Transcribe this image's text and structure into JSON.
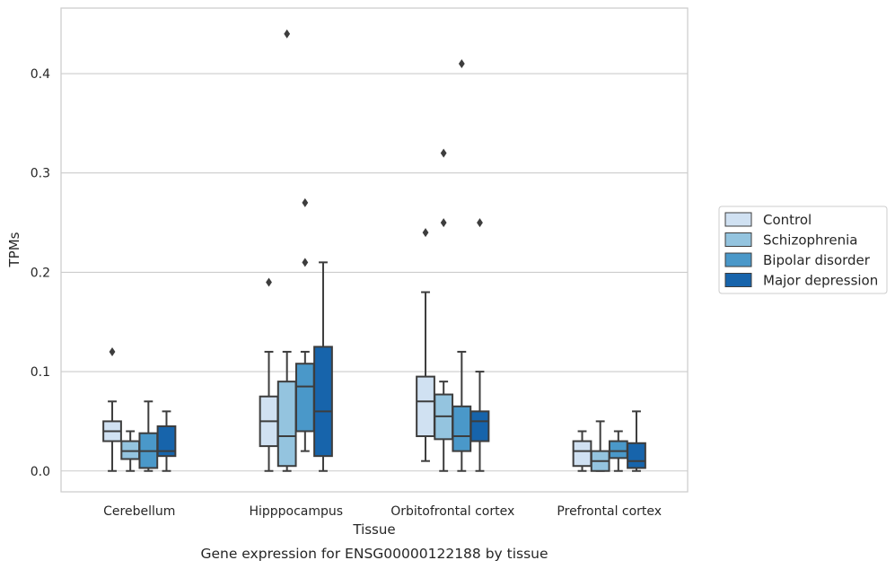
{
  "chart_data": {
    "type": "box",
    "xlabel": "Tissue",
    "ylabel": "TPMs",
    "caption": "Gene expression for ENSG00000122188 by tissue",
    "ylim": [
      -0.021,
      0.466
    ],
    "yticks": [
      "0.0",
      "0.1",
      "0.2",
      "0.3",
      "0.4"
    ],
    "ytick_values": [
      0.0,
      0.1,
      0.2,
      0.3,
      0.4
    ],
    "grid": "horizontal",
    "legend_position": "right",
    "categories": [
      "Cerebellum",
      "Hipppocampus",
      "Orbitofrontal cortex",
      "Prefrontal cortex"
    ],
    "series": [
      {
        "name": "Control",
        "color": "#d0e1f2",
        "boxes": [
          {
            "whislo": 0.0,
            "q1": 0.03,
            "med": 0.04,
            "q3": 0.05,
            "whishi": 0.07,
            "fliers": [
              0.12
            ]
          },
          {
            "whislo": 0.0,
            "q1": 0.025,
            "med": 0.05,
            "q3": 0.075,
            "whishi": 0.12,
            "fliers": [
              0.19
            ]
          },
          {
            "whislo": 0.01,
            "q1": 0.035,
            "med": 0.07,
            "q3": 0.095,
            "whishi": 0.18,
            "fliers": [
              0.24
            ]
          },
          {
            "whislo": 0.0,
            "q1": 0.005,
            "med": 0.02,
            "q3": 0.03,
            "whishi": 0.04,
            "fliers": []
          }
        ]
      },
      {
        "name": "Schizophrenia",
        "color": "#94c4df",
        "boxes": [
          {
            "whislo": 0.0,
            "q1": 0.012,
            "med": 0.02,
            "q3": 0.03,
            "whishi": 0.04,
            "fliers": []
          },
          {
            "whislo": 0.0,
            "q1": 0.005,
            "med": 0.035,
            "q3": 0.09,
            "whishi": 0.12,
            "fliers": [
              0.44
            ]
          },
          {
            "whislo": 0.0,
            "q1": 0.032,
            "med": 0.055,
            "q3": 0.077,
            "whishi": 0.09,
            "fliers": [
              0.25,
              0.32
            ]
          },
          {
            "whislo": 0.0,
            "q1": 0.0,
            "med": 0.01,
            "q3": 0.02,
            "whishi": 0.05,
            "fliers": []
          }
        ]
      },
      {
        "name": "Bipolar disorder",
        "color": "#4a98c9",
        "boxes": [
          {
            "whislo": 0.0,
            "q1": 0.003,
            "med": 0.02,
            "q3": 0.038,
            "whishi": 0.07,
            "fliers": []
          },
          {
            "whislo": 0.02,
            "q1": 0.04,
            "med": 0.085,
            "q3": 0.108,
            "whishi": 0.12,
            "fliers": [
              0.21,
              0.27
            ]
          },
          {
            "whislo": 0.0,
            "q1": 0.02,
            "med": 0.035,
            "q3": 0.065,
            "whishi": 0.12,
            "fliers": [
              0.41
            ]
          },
          {
            "whislo": 0.0,
            "q1": 0.013,
            "med": 0.02,
            "q3": 0.03,
            "whishi": 0.04,
            "fliers": []
          }
        ]
      },
      {
        "name": "Major depression",
        "color": "#1764ab",
        "boxes": [
          {
            "whislo": 0.0,
            "q1": 0.015,
            "med": 0.02,
            "q3": 0.045,
            "whishi": 0.06,
            "fliers": []
          },
          {
            "whislo": 0.0,
            "q1": 0.015,
            "med": 0.06,
            "q3": 0.125,
            "whishi": 0.21,
            "fliers": []
          },
          {
            "whislo": 0.0,
            "q1": 0.03,
            "med": 0.05,
            "q3": 0.06,
            "whishi": 0.1,
            "fliers": [
              0.25
            ]
          },
          {
            "whislo": 0.0,
            "q1": 0.003,
            "med": 0.01,
            "q3": 0.028,
            "whishi": 0.06,
            "fliers": []
          }
        ]
      }
    ],
    "style": {
      "edge_color": "#3d3d3d",
      "grid_color": "#cccccc",
      "frame_color": "#cccccc"
    }
  }
}
